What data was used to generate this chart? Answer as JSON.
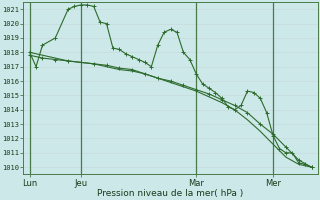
{
  "bg_color": "#cce8e8",
  "grid_color_h": "#c8d8d8",
  "grid_color_v": "#c8c8d8",
  "line_color": "#2d6b2d",
  "xlabel": "Pression niveau de la mer( hPa )",
  "ylim": [
    1009.5,
    1021.5
  ],
  "yticks": [
    1010,
    1011,
    1012,
    1013,
    1014,
    1015,
    1016,
    1017,
    1018,
    1019,
    1020,
    1021
  ],
  "xtick_labels": [
    "Lun",
    "Jeu",
    "Mar",
    "Mer"
  ],
  "xtick_positions": [
    1,
    9,
    27,
    39
  ],
  "vline_positions": [
    1,
    9,
    27,
    39
  ],
  "xlim": [
    0,
    46
  ],
  "series1_x": [
    1,
    2,
    3,
    5,
    7,
    8,
    9,
    10,
    11,
    12,
    13,
    14,
    15,
    16,
    17,
    18,
    19,
    20,
    21,
    22,
    23,
    24,
    25,
    26,
    27,
    28,
    29,
    30,
    31,
    32,
    33,
    34,
    35,
    36,
    37,
    38,
    39,
    40,
    41,
    42,
    43,
    44,
    45
  ],
  "series1_y": [
    1018.0,
    1017.0,
    1018.5,
    1019.0,
    1021.0,
    1021.2,
    1021.3,
    1021.3,
    1021.2,
    1020.1,
    1020.0,
    1018.3,
    1018.2,
    1017.9,
    1017.7,
    1017.5,
    1017.3,
    1017.0,
    1018.5,
    1019.4,
    1019.6,
    1019.4,
    1018.0,
    1017.5,
    1016.5,
    1015.8,
    1015.5,
    1015.2,
    1014.8,
    1014.2,
    1014.0,
    1014.3,
    1015.3,
    1015.2,
    1014.8,
    1013.8,
    1012.2,
    1011.3,
    1011.0,
    1011.0,
    1010.3,
    1010.2,
    1010.0
  ],
  "series2_x": [
    1,
    3,
    5,
    7,
    9,
    11,
    13,
    15,
    17,
    19,
    21,
    23,
    25,
    27,
    29,
    31,
    33,
    35,
    37,
    39,
    41,
    43,
    45
  ],
  "series2_y": [
    1017.8,
    1017.6,
    1017.5,
    1017.4,
    1017.3,
    1017.2,
    1017.1,
    1016.9,
    1016.8,
    1016.5,
    1016.2,
    1016.0,
    1015.7,
    1015.4,
    1015.1,
    1014.7,
    1014.3,
    1013.8,
    1013.0,
    1012.3,
    1011.4,
    1010.5,
    1010.0
  ],
  "series3_x": [
    1,
    3,
    5,
    7,
    9,
    11,
    13,
    15,
    17,
    19,
    21,
    23,
    25,
    27,
    29,
    31,
    33,
    35,
    37,
    39,
    41,
    43,
    45
  ],
  "series3_y": [
    1018.0,
    1017.8,
    1017.6,
    1017.4,
    1017.3,
    1017.2,
    1017.0,
    1016.8,
    1016.7,
    1016.5,
    1016.2,
    1015.9,
    1015.6,
    1015.3,
    1014.9,
    1014.5,
    1014.0,
    1013.3,
    1012.5,
    1011.6,
    1010.7,
    1010.2,
    1010.0
  ]
}
